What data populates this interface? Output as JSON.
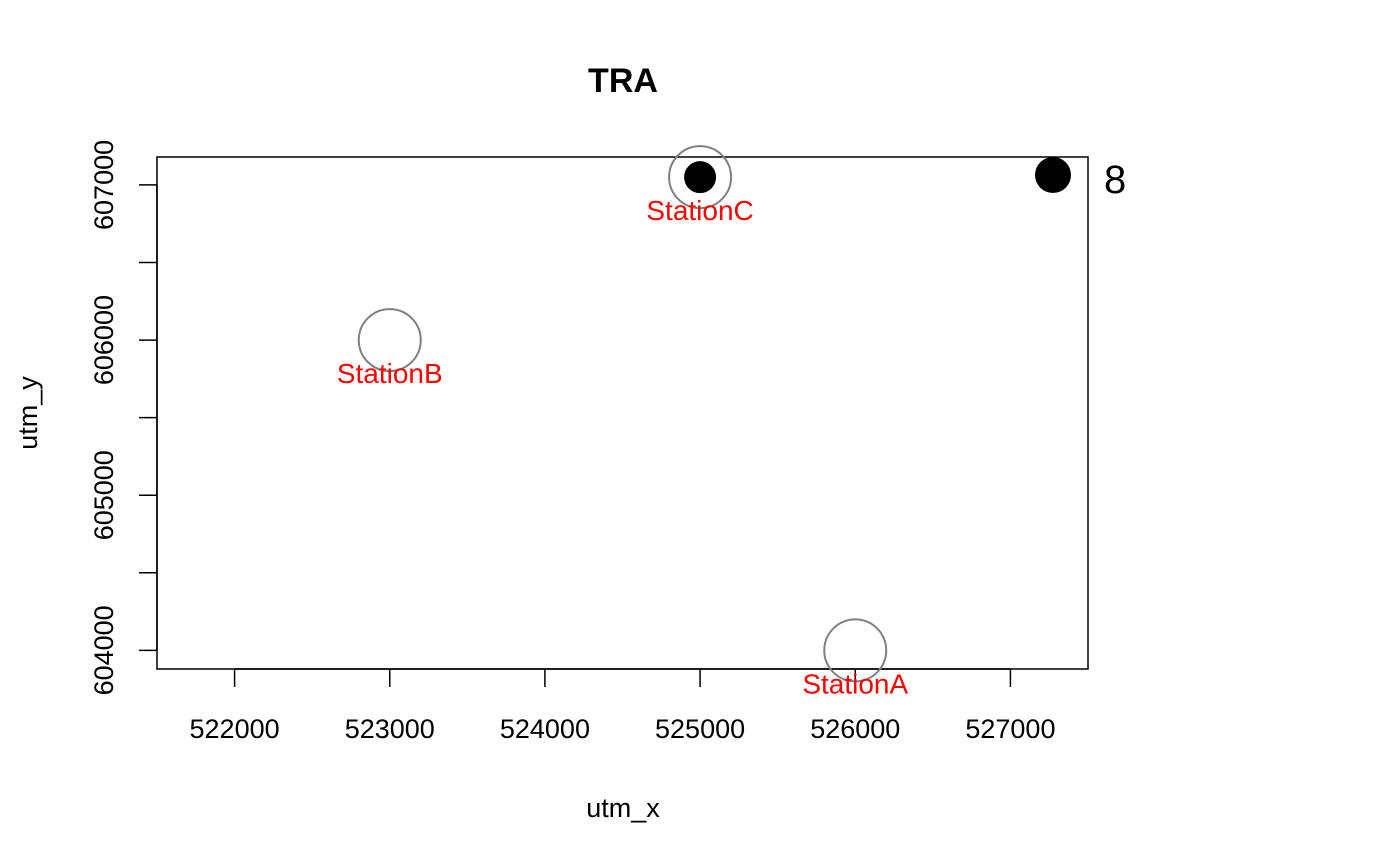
{
  "chart_data": {
    "type": "scatter",
    "title": "TRA",
    "xlabel": "utm_x",
    "ylabel": "utm_y",
    "xlim": [
      521500,
      527500
    ],
    "ylim": [
      603880,
      607180
    ],
    "xticks": [
      522000,
      523000,
      524000,
      525000,
      526000,
      527000
    ],
    "xtick_labels": [
      "522000",
      "523000",
      "524000",
      "525000",
      "526000",
      "527000"
    ],
    "yticks": [
      604000,
      604500,
      605000,
      605500,
      606000,
      606500,
      607000
    ],
    "ytick_labels": [
      "604000",
      "605000",
      "606000",
      "607000"
    ],
    "stations": [
      {
        "name": "StationA",
        "x": 526000,
        "y": 604000
      },
      {
        "name": "StationB",
        "x": 523000,
        "y": 606000
      },
      {
        "name": "StationC",
        "x": 525000,
        "y": 607050
      }
    ],
    "detections": [
      {
        "x": 525000,
        "y": 607050
      }
    ],
    "legend": {
      "label": "8",
      "placement": "right of top-right corner"
    },
    "colors": {
      "station_label": "#ff0000",
      "station_ring": "#808080",
      "detection": "#000000",
      "axis": "#000000"
    }
  }
}
